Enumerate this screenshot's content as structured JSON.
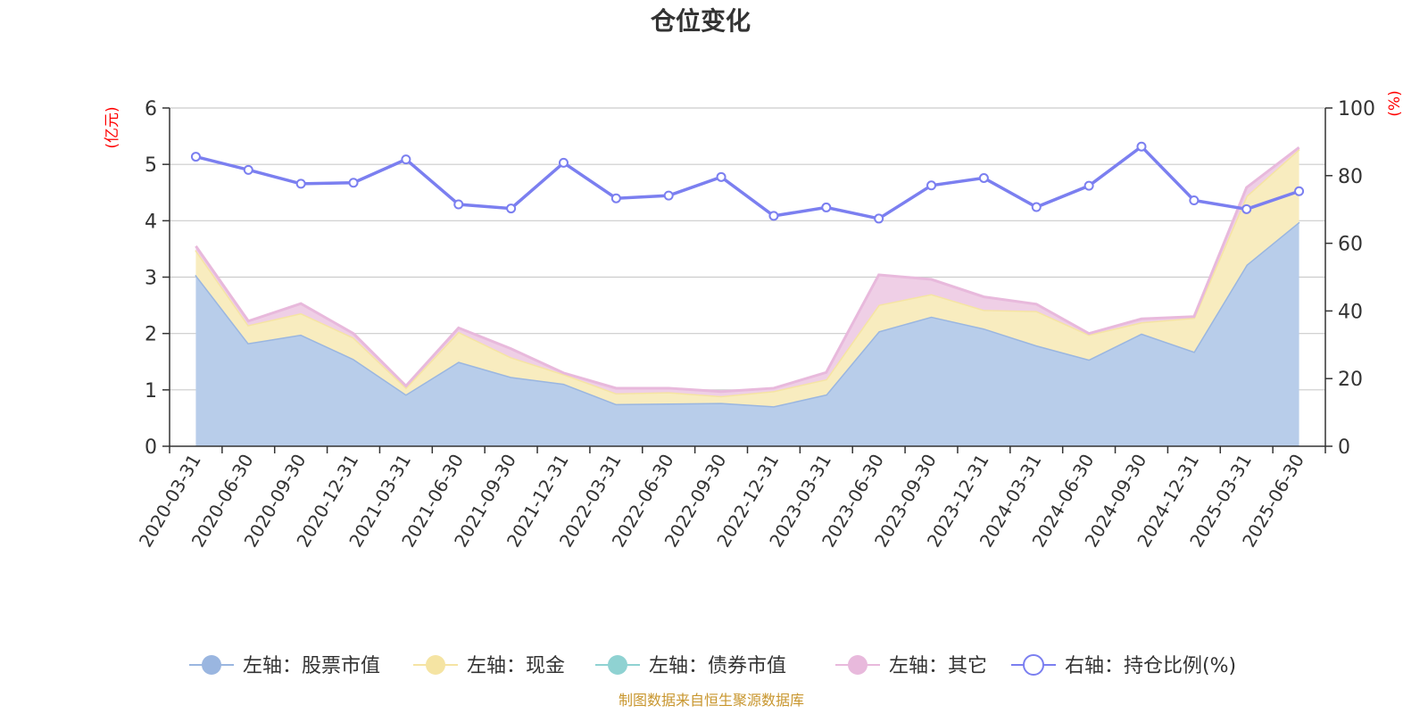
{
  "chart_data": {
    "type": "area",
    "title": "仓位变化",
    "left_axis_unit": "(亿元)",
    "right_axis_unit": "(%)",
    "left_ylim": [
      0,
      6
    ],
    "left_yticks": [
      "0",
      "1",
      "2",
      "3",
      "4",
      "5",
      "6"
    ],
    "right_ylim": [
      0,
      100
    ],
    "right_yticks": [
      "0",
      "20",
      "40",
      "60",
      "80",
      "100"
    ],
    "grid": true,
    "stacked": true,
    "legend_position": "bottom",
    "categories": [
      "2020-03-31",
      "2020-06-30",
      "2020-09-30",
      "2020-12-31",
      "2021-03-31",
      "2021-06-30",
      "2021-09-30",
      "2021-12-31",
      "2022-03-31",
      "2022-06-30",
      "2022-09-30",
      "2022-12-31",
      "2023-03-31",
      "2023-06-30",
      "2023-09-30",
      "2023-12-31",
      "2024-03-31",
      "2024-06-30",
      "2024-09-30",
      "2024-12-31",
      "2025-03-31",
      "2025-06-30"
    ],
    "series": [
      {
        "name": "左轴：股票市值",
        "axis": "left",
        "color": "#9ab6e0",
        "fill": "#b8cdea",
        "values": [
          3.04,
          1.83,
          1.98,
          1.55,
          0.92,
          1.5,
          1.23,
          1.11,
          0.75,
          0.76,
          0.77,
          0.71,
          0.92,
          2.04,
          2.3,
          2.09,
          1.79,
          1.54,
          2.0,
          1.68,
          3.22,
          3.98
        ]
      },
      {
        "name": "左轴：现金",
        "axis": "left",
        "color": "#f5e4a3",
        "fill": "#f8ecbf",
        "values": [
          0.44,
          0.32,
          0.38,
          0.38,
          0.12,
          0.53,
          0.35,
          0.17,
          0.19,
          0.2,
          0.12,
          0.27,
          0.27,
          0.47,
          0.4,
          0.33,
          0.61,
          0.44,
          0.2,
          0.6,
          1.22,
          1.29
        ]
      },
      {
        "name": "左轴：债券市值",
        "axis": "left",
        "color": "#8fd2d2",
        "fill": "#a7dcdc",
        "values": [
          0,
          0,
          0,
          0,
          0,
          0,
          0,
          0,
          0,
          0,
          0,
          0,
          0,
          0,
          0,
          0,
          0,
          0,
          0,
          0,
          0,
          0
        ]
      },
      {
        "name": "左轴：其它",
        "axis": "left",
        "color": "#e8b9dc",
        "fill": "#efcfe6",
        "values": [
          0.07,
          0.07,
          0.17,
          0.07,
          0.03,
          0.07,
          0.15,
          0.02,
          0.09,
          0.07,
          0.08,
          0.05,
          0.12,
          0.53,
          0.26,
          0.23,
          0.12,
          0.02,
          0.06,
          0.02,
          0.15,
          0.03
        ]
      },
      {
        "name": "右轴：持仓比例(%)",
        "axis": "right",
        "color": "#7b7ff0",
        "values": [
          85.6,
          81.7,
          77.6,
          77.9,
          84.8,
          71.5,
          70.3,
          83.8,
          73.3,
          74.1,
          79.6,
          68.1,
          70.6,
          67.3,
          77.1,
          79.3,
          70.7,
          77.0,
          88.6,
          72.7,
          70.1,
          75.4
        ]
      }
    ],
    "source": "制图数据来自恒生聚源数据库"
  }
}
